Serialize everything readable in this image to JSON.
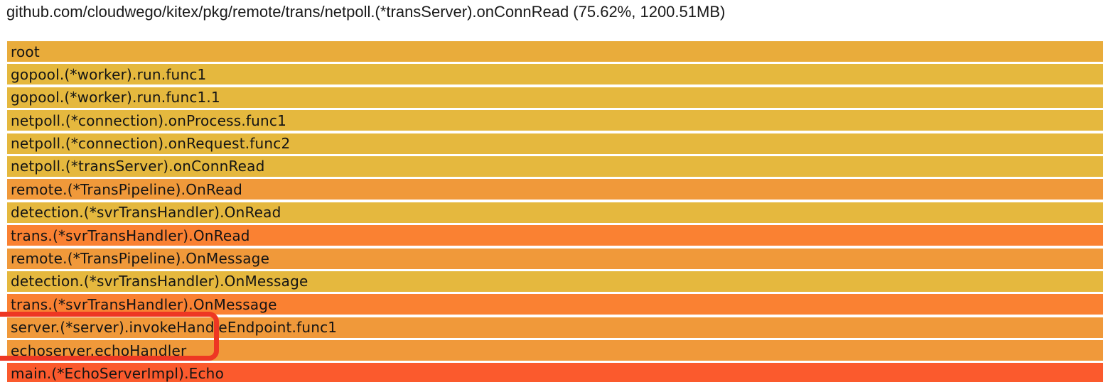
{
  "header": {
    "title": "github.com/cloudwego/kitex/pkg/remote/trans/netpoll.(*transServer).onConnRead (75.62%, 1200.51MB)",
    "selected_function": "github.com/cloudwego/kitex/pkg/remote/trans/netpoll.(*transServer).onConnRead",
    "percent": "75.62%",
    "size": "1200.51MB"
  },
  "chart_data": {
    "type": "heatmap",
    "subtype": "flame-graph",
    "title": "github.com/cloudwego/kitex/pkg/remote/trans/netpoll.(*transServer).onConnRead (75.62%, 1200.51MB)",
    "layout": "single full-width call stack, top-down, one frame per row",
    "frames": [
      {
        "name": "root",
        "color": "#e9ac3b",
        "width_pct": 100
      },
      {
        "name": "gopool.(*worker).run.func1",
        "color": "#e5b83e",
        "width_pct": 100
      },
      {
        "name": "gopool.(*worker).run.func1.1",
        "color": "#e5b83e",
        "width_pct": 100
      },
      {
        "name": "netpoll.(*connection).onProcess.func1",
        "color": "#e5b83e",
        "width_pct": 100
      },
      {
        "name": "netpoll.(*connection).onRequest.func2",
        "color": "#e5b83e",
        "width_pct": 100
      },
      {
        "name": "netpoll.(*transServer).onConnRead",
        "color": "#e5b83e",
        "width_pct": 100
      },
      {
        "name": "remote.(*TransPipeline).OnRead",
        "color": "#f0993a",
        "width_pct": 100
      },
      {
        "name": "detection.(*svrTransHandler).OnRead",
        "color": "#e5b83e",
        "width_pct": 100
      },
      {
        "name": "trans.(*svrTransHandler).OnRead",
        "color": "#fa8132",
        "width_pct": 100
      },
      {
        "name": "remote.(*TransPipeline).OnMessage",
        "color": "#f0993a",
        "width_pct": 100
      },
      {
        "name": "detection.(*svrTransHandler).OnMessage",
        "color": "#e5b83e",
        "width_pct": 100
      },
      {
        "name": "trans.(*svrTransHandler).OnMessage",
        "color": "#fa8132",
        "width_pct": 100
      },
      {
        "name": "server.(*server).invokeHandleEndpoint.func1",
        "color": "#f0993a",
        "width_pct": 100
      },
      {
        "name": "echoserver.echoHandler",
        "color": "#f0993a",
        "width_pct": 100
      },
      {
        "name": "main.(*EchoServerImpl).Echo",
        "color": "#fb5a2d",
        "width_pct": 100
      }
    ],
    "annotation": {
      "shape": "rounded-rectangle-outline",
      "color": "#ee3723",
      "highlighted_frames": [
        "server.(*server).invokeHandleEndpoint.func1",
        "echoserver.echoHandler"
      ]
    }
  }
}
